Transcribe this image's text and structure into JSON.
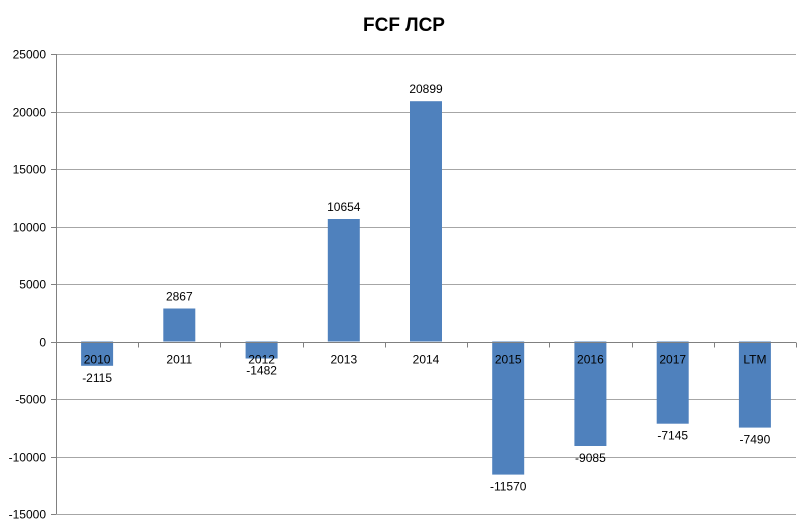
{
  "chart_data": {
    "type": "bar",
    "title": "FCF ЛСР",
    "xlabel": "",
    "ylabel": "",
    "categories": [
      "2010",
      "2011",
      "2012",
      "2013",
      "2014",
      "2015",
      "2016",
      "2017",
      "LTM"
    ],
    "values": [
      -2115,
      2867,
      -1482,
      10654,
      20899,
      -11570,
      -9085,
      -7145,
      -7490
    ],
    "data_labels": [
      "-2115",
      "2867",
      "-1482",
      "10654",
      "20899",
      "-11570",
      "-9085",
      "-7145",
      "-7490"
    ],
    "ylim": [
      -15000,
      25000
    ],
    "yticks": [
      25000,
      20000,
      15000,
      10000,
      5000,
      0,
      -5000,
      -10000,
      -15000
    ],
    "ytick_labels": [
      "25000",
      "20000",
      "15000",
      "10000",
      "5000",
      "0",
      "-5000",
      "-10000",
      "-15000"
    ],
    "grid": true,
    "legend": "none",
    "bar_color": "#4F81BD",
    "grid_color": "#A6A6A6",
    "axis_color": "#808080"
  }
}
